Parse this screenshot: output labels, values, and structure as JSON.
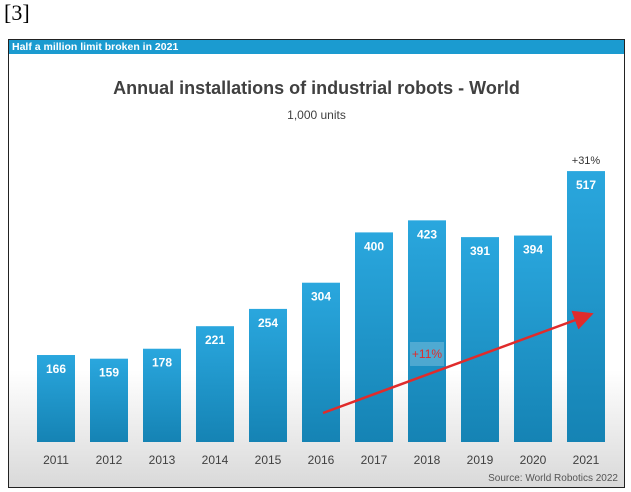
{
  "ref_label": "[3]",
  "banner": "Half a million limit broken in 2021",
  "title": "Annual installations of industrial robots - World",
  "subtitle": "1,000 units",
  "source": "Source: World Robotics 2022",
  "chart_data": {
    "type": "bar",
    "categories": [
      "2011",
      "2012",
      "2013",
      "2014",
      "2015",
      "2016",
      "2017",
      "2018",
      "2019",
      "2020",
      "2021"
    ],
    "values": [
      166,
      159,
      178,
      221,
      254,
      304,
      400,
      423,
      391,
      394,
      517
    ],
    "annotations": [
      {
        "category": "2021",
        "text": "+31%"
      },
      {
        "category": "2018",
        "text": "+11%"
      }
    ],
    "trend_arrow": {
      "from": "2016",
      "to": "2021"
    },
    "colors": {
      "bar": "#1e9bd3",
      "banner": "#1b9bd0",
      "arrow": "#e02b2b",
      "value_label": "#ffffff"
    }
  }
}
